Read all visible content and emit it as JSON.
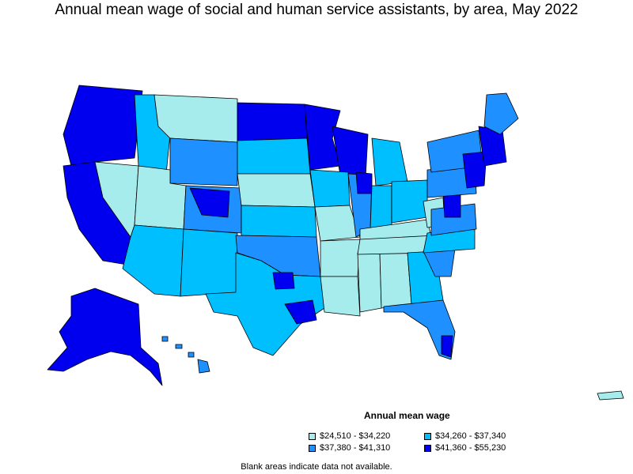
{
  "title": "Annual mean wage of social and human service assistants, by area, May 2022",
  "legend": {
    "title": "Annual mean wage",
    "items": [
      {
        "label": "$24,510 - $34,220",
        "color": "#a6ecec"
      },
      {
        "label": "$34,260 - $37,340",
        "color": "#00bfff"
      },
      {
        "label": "$37,380 - $41,310",
        "color": "#1e90ff"
      },
      {
        "label": "$41,360 - $55,230",
        "color": "#0000ee"
      }
    ]
  },
  "note": "Blank areas indicate data not available.",
  "colors": {
    "border": "#000000",
    "background": "#ffffff"
  }
}
